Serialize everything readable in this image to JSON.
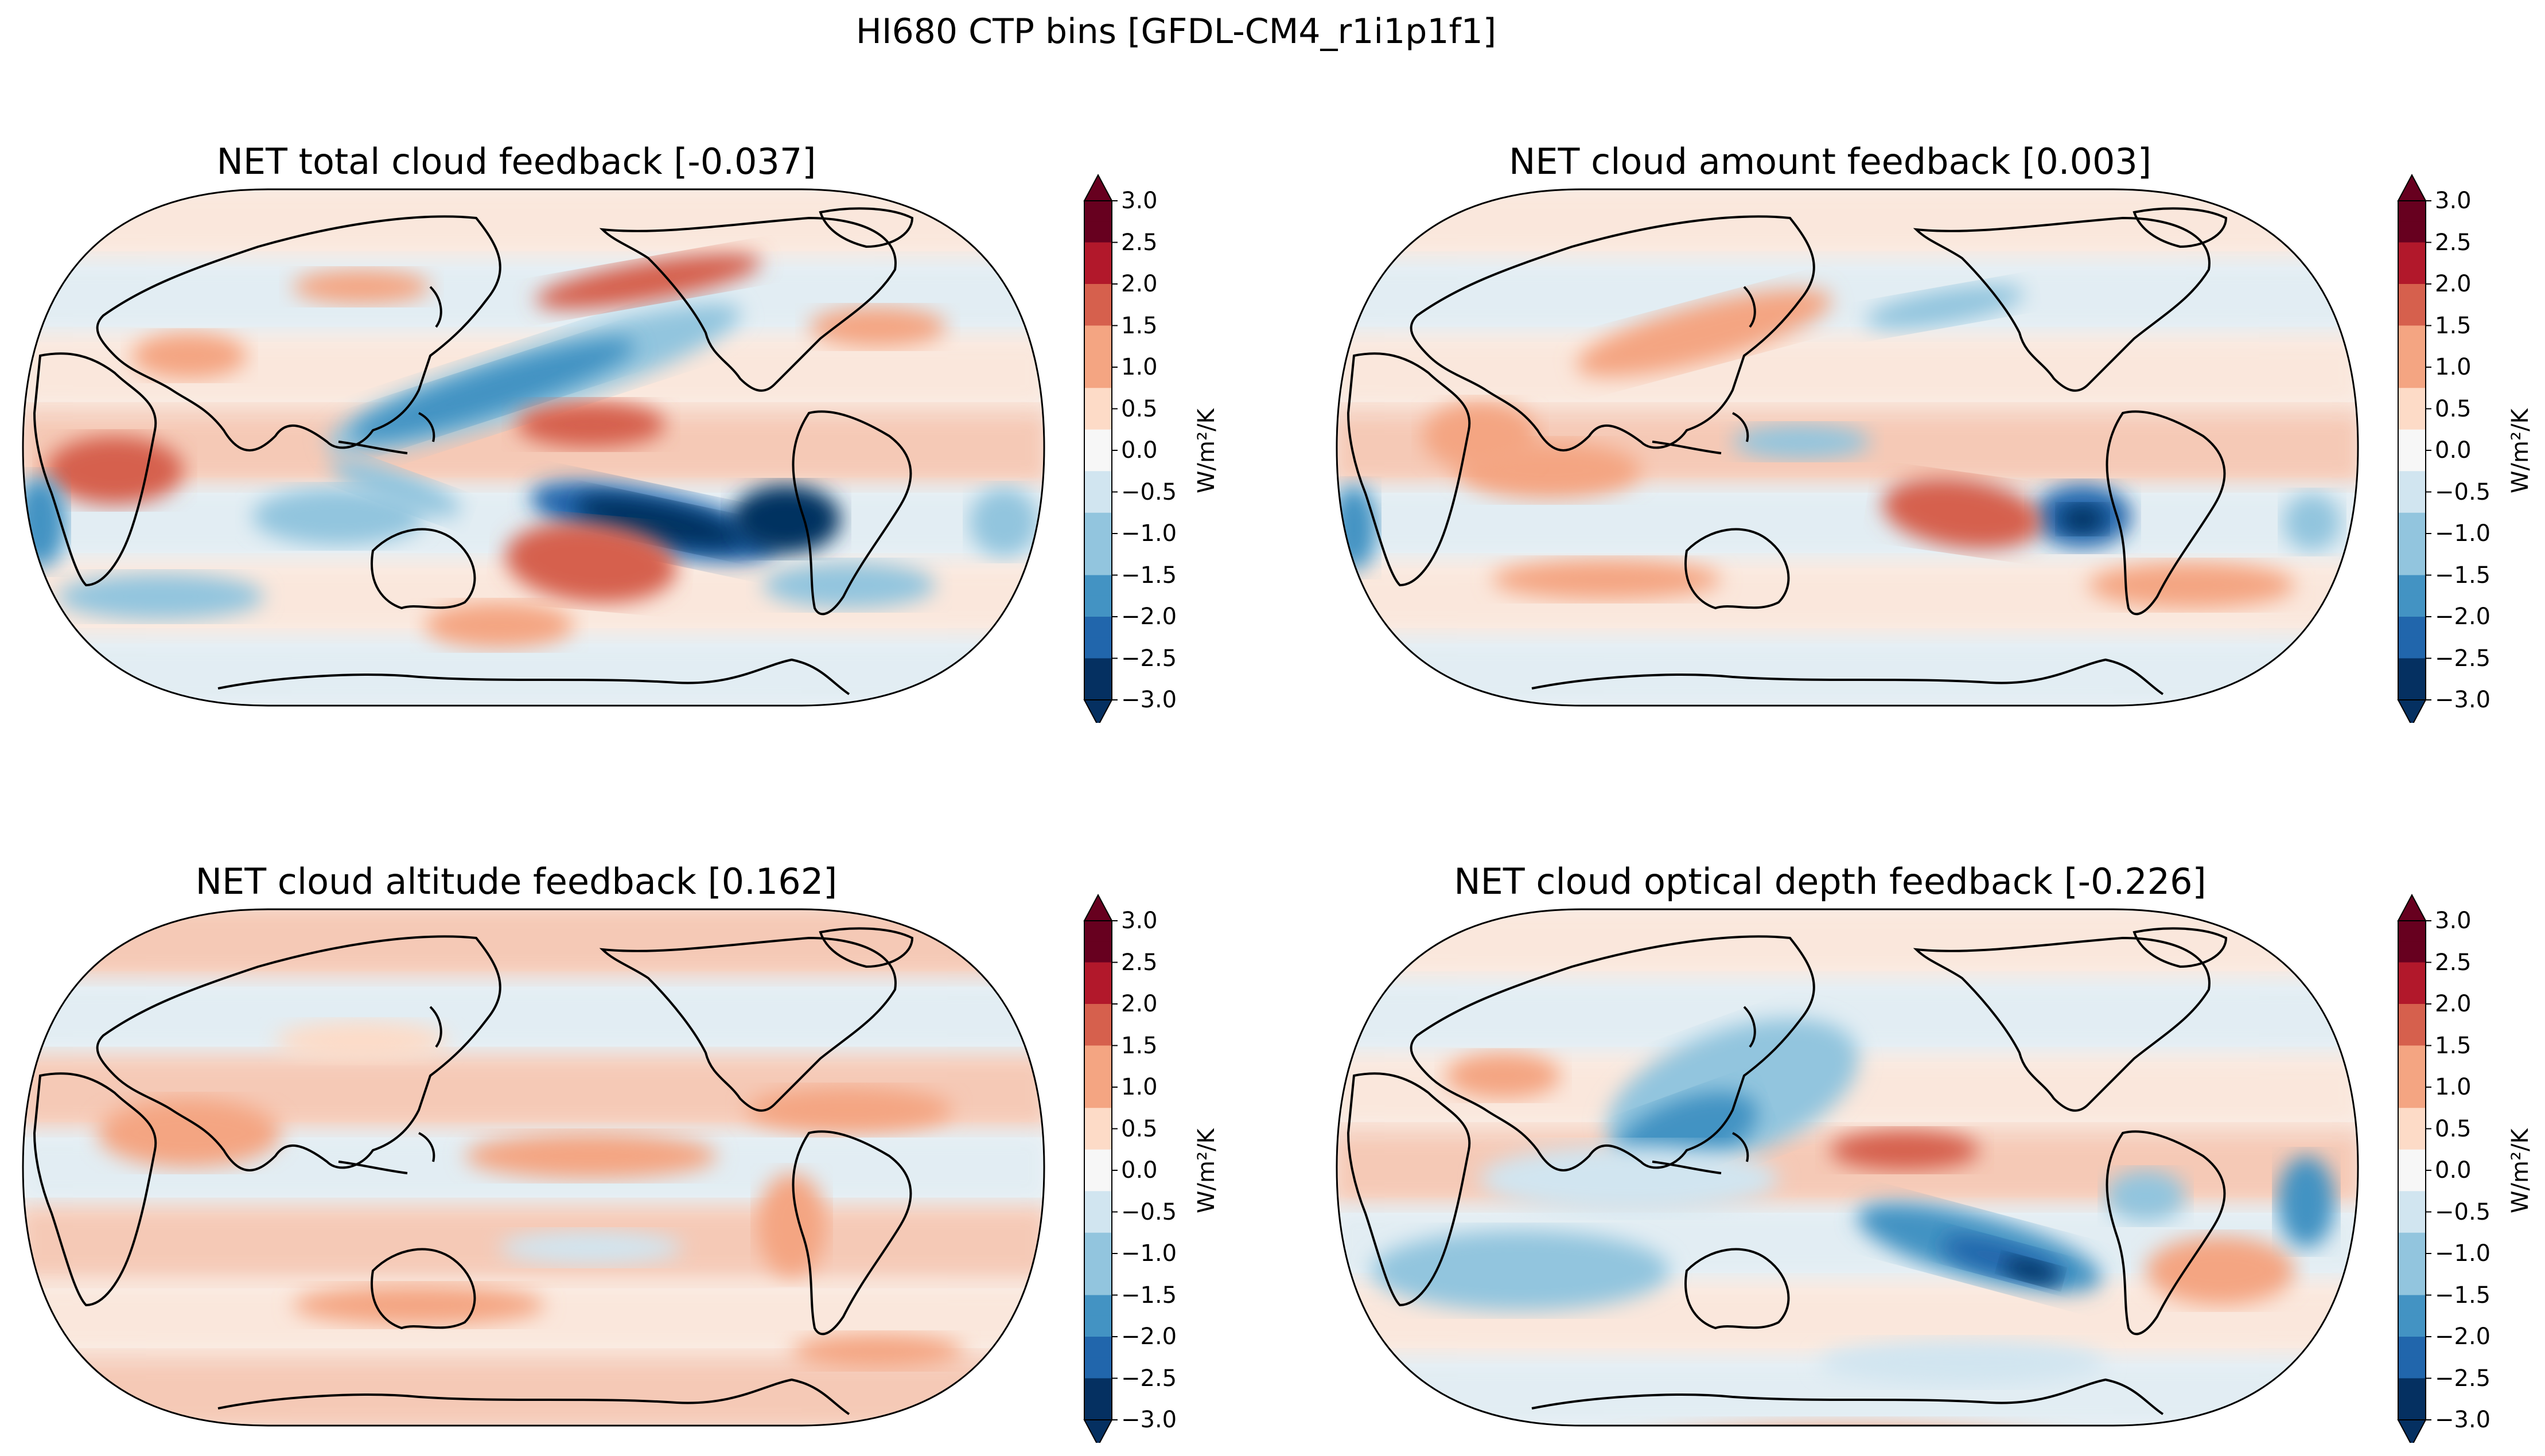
{
  "figure_title": "HI680 CTP bins [GFDL-CM4_r1i1p1f1]",
  "colorbar": {
    "label": "W/m²/K",
    "ticks": [
      "3.0",
      "2.5",
      "2.0",
      "1.5",
      "1.0",
      "0.5",
      "0.0",
      "−0.5",
      "−1.0",
      "−1.5",
      "−2.0",
      "−2.5",
      "−3.0"
    ],
    "range": [
      -3.0,
      3.0
    ],
    "extend": "both",
    "colormap": "RdBu_r",
    "colors": [
      "#053061",
      "#2166ac",
      "#4393c3",
      "#92c5de",
      "#d1e5f0",
      "#f7f7f7",
      "#fddbc7",
      "#f4a582",
      "#d6604d",
      "#b2182b",
      "#67001f"
    ]
  },
  "panels": [
    {
      "title": "NET total cloud feedback [-0.037]",
      "global_mean": -0.037
    },
    {
      "title": "NET cloud amount feedback [0.003]",
      "global_mean": 0.003
    },
    {
      "title": "NET cloud altitude feedback [0.162]",
      "global_mean": 0.162
    },
    {
      "title": "NET cloud optical depth feedback [-0.226]",
      "global_mean": -0.226
    }
  ],
  "map": {
    "projection": "Robinson",
    "central_longitude": 180,
    "coastlines": true
  }
}
